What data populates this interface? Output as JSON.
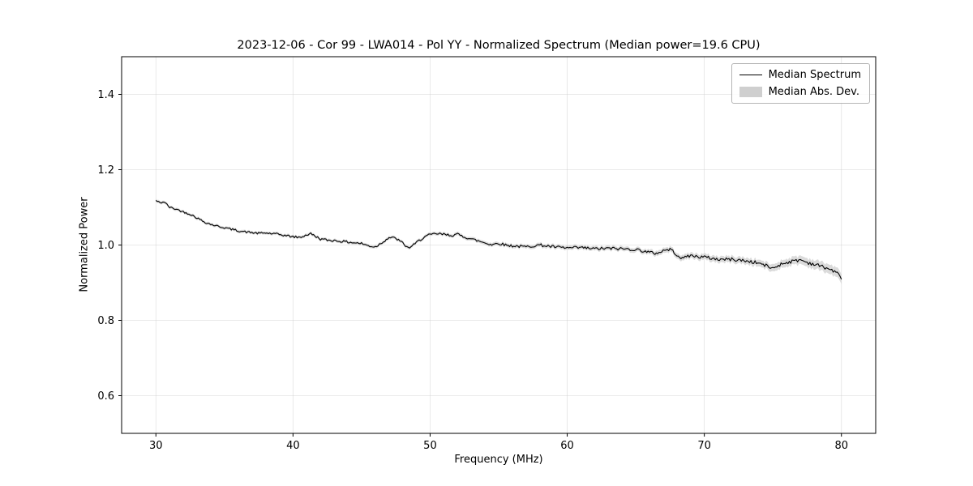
{
  "figure": {
    "title": "2023-12-06 - Cor 99 - LWA014 - Pol YY - Normalized Spectrum (Median power=19.6 CPU)",
    "xlabel": "Frequency (MHz)",
    "ylabel": "Normalized Power"
  },
  "legend": {
    "entries": [
      {
        "label": "Median Spectrum",
        "swatch": "line",
        "color": "#000000"
      },
      {
        "label": "Median Abs. Dev.",
        "swatch": "patch",
        "color": "#cfcfcf"
      }
    ],
    "position": "upper right"
  },
  "chart_data": {
    "type": "line",
    "title": "2023-12-06 - Cor 99 - LWA014 - Pol YY - Normalized Spectrum (Median power=19.6 CPU)",
    "xlabel": "Frequency (MHz)",
    "ylabel": "Normalized Power",
    "xlim": [
      27.5,
      82.5
    ],
    "ylim": [
      0.5,
      1.5
    ],
    "xticks": [
      "30",
      "40",
      "50",
      "60",
      "70",
      "80"
    ],
    "xtick_values": [
      30,
      40,
      50,
      60,
      70,
      80
    ],
    "yticks": [
      "0.6",
      "0.8",
      "1.0",
      "1.2",
      "1.4"
    ],
    "ytick_values": [
      0.6,
      0.8,
      1.0,
      1.2,
      1.4
    ],
    "grid": true,
    "grid_color": "#cccccc",
    "legend_position": "upper right",
    "series": [
      {
        "name": "Median Spectrum",
        "color": "#000000",
        "x": [
          30.0,
          30.3,
          30.6,
          31.0,
          31.5,
          32.0,
          32.5,
          33.0,
          33.5,
          34.0,
          34.5,
          35.0,
          35.5,
          36.0,
          36.5,
          37.0,
          37.5,
          38.0,
          38.5,
          39.0,
          39.5,
          40.0,
          40.5,
          41.0,
          41.3,
          41.7,
          42.0,
          42.5,
          43.0,
          43.5,
          44.0,
          44.5,
          45.0,
          45.5,
          46.0,
          46.3,
          46.7,
          47.0,
          47.5,
          48.0,
          48.4,
          48.8,
          49.2,
          49.6,
          50.0,
          50.5,
          51.0,
          51.5,
          52.0,
          52.5,
          53.0,
          53.5,
          54.0,
          54.5,
          55.0,
          55.5,
          56.0,
          57.0,
          57.5,
          58.0,
          59.0,
          60.0,
          61.0,
          62.0,
          63.0,
          64.0,
          65.0,
          65.5,
          66.0,
          66.5,
          67.0,
          67.5,
          68.0,
          68.4,
          68.8,
          69.2,
          69.6,
          70.0,
          70.5,
          71.0,
          72.0,
          73.0,
          74.0,
          74.5,
          75.0,
          75.5,
          76.0,
          76.5,
          77.0,
          77.5,
          78.0,
          78.5,
          79.0,
          79.5,
          80.0
        ],
        "y": [
          1.118,
          1.112,
          1.115,
          1.1,
          1.095,
          1.088,
          1.082,
          1.072,
          1.062,
          1.055,
          1.05,
          1.046,
          1.042,
          1.038,
          1.035,
          1.033,
          1.031,
          1.032,
          1.03,
          1.028,
          1.025,
          1.022,
          1.02,
          1.027,
          1.03,
          1.022,
          1.016,
          1.013,
          1.012,
          1.01,
          1.008,
          1.006,
          1.004,
          0.998,
          0.995,
          1.002,
          1.012,
          1.02,
          1.018,
          1.005,
          0.992,
          1.0,
          1.012,
          1.022,
          1.027,
          1.03,
          1.028,
          1.026,
          1.028,
          1.022,
          1.016,
          1.011,
          1.006,
          1.001,
          1.005,
          1.0,
          0.998,
          0.995,
          0.998,
          1.0,
          0.995,
          0.992,
          0.993,
          0.99,
          0.991,
          0.99,
          0.988,
          0.985,
          0.98,
          0.978,
          0.985,
          0.989,
          0.975,
          0.963,
          0.972,
          0.971,
          0.969,
          0.968,
          0.965,
          0.962,
          0.962,
          0.958,
          0.952,
          0.945,
          0.938,
          0.948,
          0.954,
          0.957,
          0.961,
          0.954,
          0.949,
          0.944,
          0.938,
          0.93,
          0.914
        ]
      },
      {
        "name": "Median Abs. Dev.",
        "color": "#cfcfcf",
        "band_x": [
          30,
          45,
          55,
          65,
          70,
          74,
          77,
          80
        ],
        "band_halfwidth": [
          0.004,
          0.004,
          0.005,
          0.006,
          0.008,
          0.009,
          0.011,
          0.013
        ]
      }
    ],
    "render_noise": {
      "seed": 42,
      "amplitude_start": 0.0025,
      "amplitude_end": 0.005,
      "step_mhz": 0.1
    }
  }
}
